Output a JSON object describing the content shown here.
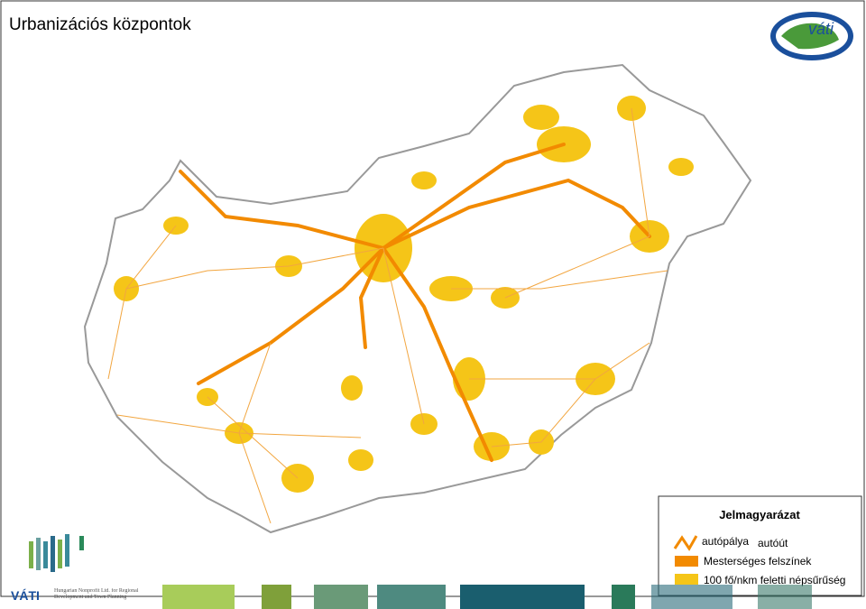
{
  "header": {
    "title": "Urbanizációs központok",
    "logo": "váti"
  },
  "legend": {
    "title": "Jelmagyarázat",
    "items": [
      "autópálya",
      "autóút",
      "Mesterséges felszínek",
      "100 fő/nkm feletti népsűrűség"
    ]
  },
  "footer": {
    "brand": "VÁTI",
    "subtitle": "Hungarian Nonprofit Ltd. for Regional Development and Town Planning"
  }
}
